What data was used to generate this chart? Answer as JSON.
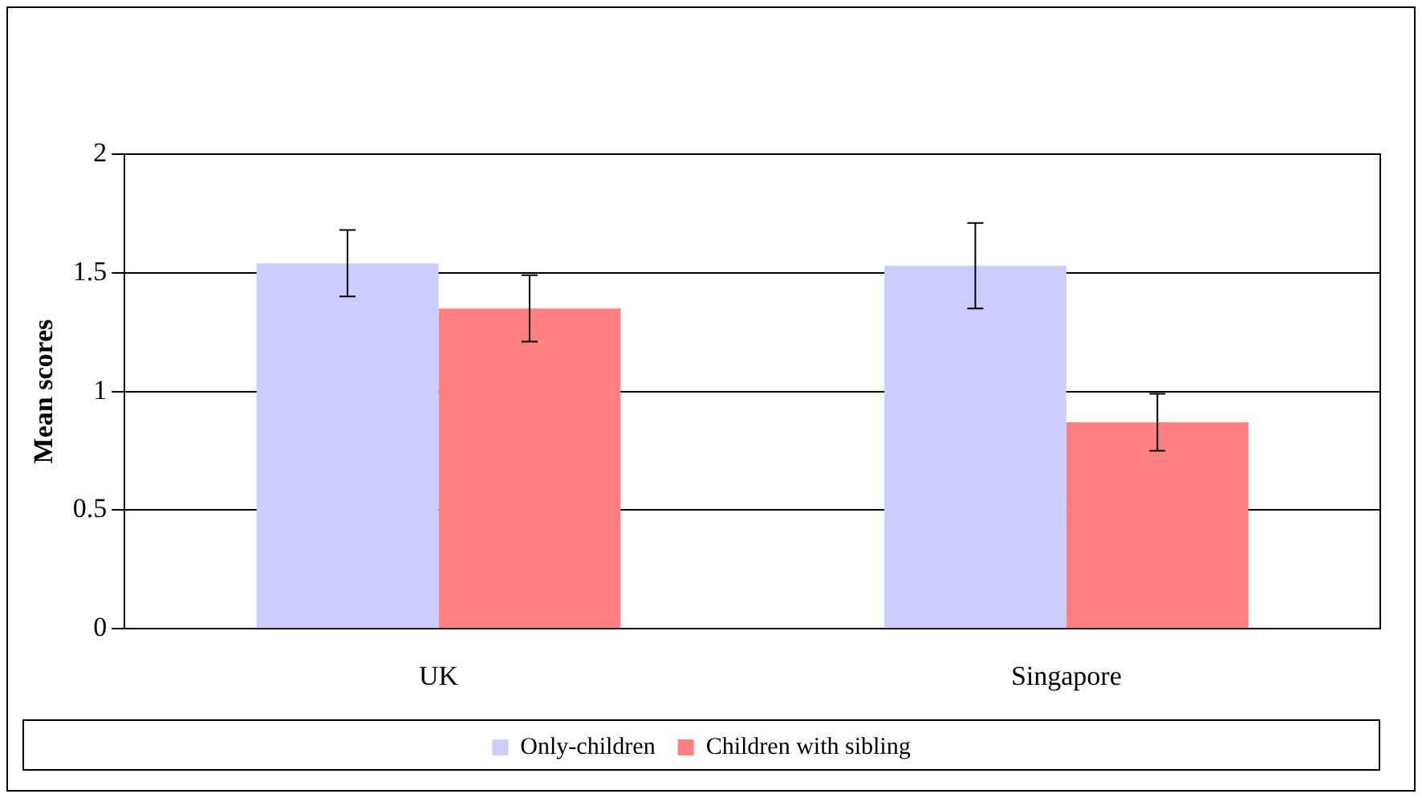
{
  "chart_data": {
    "type": "bar",
    "ylabel": "Mean scores",
    "categories": [
      "UK",
      "Singapore"
    ],
    "series": [
      {
        "name": "Only-children",
        "color": "#ccccff",
        "values": [
          1.54,
          1.53
        ],
        "errors": [
          0.14,
          0.18
        ]
      },
      {
        "name": "Children with sibling",
        "color": "#ff8080",
        "values": [
          1.35,
          0.87
        ],
        "errors": [
          0.14,
          0.12
        ]
      }
    ],
    "ylim": [
      0,
      2
    ],
    "yticks": [
      0,
      0.5,
      1,
      1.5,
      2
    ],
    "grid": "y",
    "legend": "bottom"
  }
}
